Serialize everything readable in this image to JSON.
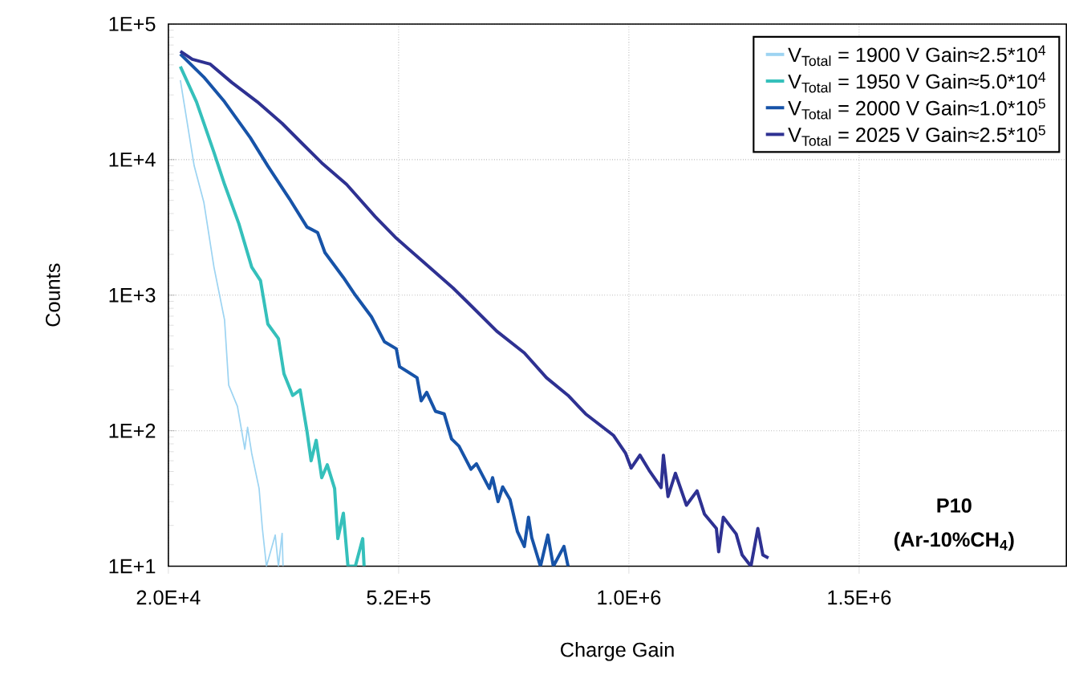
{
  "chart_data": {
    "type": "line",
    "xlabel": "Charge Gain",
    "ylabel": "Counts",
    "log": "y",
    "grid": true,
    "legend": "top right",
    "marker": "none",
    "line_style": "solid",
    "xlim": [
      20000,
      1970000
    ],
    "ylim": [
      10,
      100000
    ],
    "xticks": [
      {
        "value": 20000,
        "label": "2.0E+4"
      },
      {
        "value": 520000,
        "label": "5.2E+5"
      },
      {
        "value": 1020000,
        "label": "1.0E+6"
      },
      {
        "value": 1520000,
        "label": "1.5E+6"
      }
    ],
    "yticks": [
      {
        "value": 10,
        "label": "1E+1"
      },
      {
        "value": 100,
        "label": "1E+2"
      },
      {
        "value": 1000,
        "label": "1E+3"
      },
      {
        "value": 10000,
        "label": "1E+4"
      },
      {
        "value": 100000,
        "label": "1E+5"
      }
    ],
    "annotations": [
      "P10",
      "(Ar-10%CH$_{4}$)"
    ],
    "series": [
      {
        "name": "V$_{Total}$ = 1900 V   Gain≈2.5*10$^{4}$",
        "color": "#9dd4f2",
        "x": [
          46000,
          76000,
          97000,
          119000,
          142000,
          151000,
          170000,
          186000,
          192000,
          201000,
          217000,
          224000,
          233000,
          252000,
          259000,
          267000,
          269000
        ],
        "values": [
          38500,
          9000,
          4850,
          1610,
          656,
          217,
          151,
          73,
          106,
          68,
          37.5,
          19.2,
          10,
          17,
          10,
          17.5,
          10
        ]
      },
      {
        "name": "V$_{Total}$ = 1950 V   Gain≈5.0*10$^{4}$",
        "color": "#35c0bb",
        "x": [
          46000,
          81000,
          119000,
          142000,
          173000,
          201000,
          220000,
          236000,
          259000,
          271000,
          290000,
          306000,
          321000,
          330000,
          341000,
          353000,
          365000,
          381000,
          388000,
          400000,
          410000,
          426000,
          442000,
          445000
        ],
        "values": [
          48600,
          26700,
          11300,
          6560,
          3370,
          1610,
          1280,
          612,
          478,
          263,
          182,
          200,
          99,
          60,
          85,
          45,
          56,
          37.5,
          16,
          24.6,
          10,
          10,
          16,
          10
        ]
      },
      {
        "name": "V$_{Total}$ = 2000 V   Gain≈1.0*10$^{5}$",
        "color": "#1753a8",
        "x": [
          46000,
          97000,
          142000,
          198000,
          236000,
          283000,
          321000,
          344000,
          360000,
          400000,
          426000,
          461000,
          489000,
          515000,
          522000,
          560000,
          569000,
          581000,
          600000,
          619000,
          635000,
          651000,
          677000,
          689000,
          717000,
          724000,
          736000,
          746000,
          762000,
          778000,
          793000,
          802000,
          809000,
          828000,
          844000,
          856000,
          879000,
          888000
        ],
        "values": [
          60000,
          40600,
          26700,
          14500,
          8970,
          5130,
          3180,
          2900,
          2060,
          1350,
          1000,
          692,
          454,
          402,
          297,
          246,
          166,
          192,
          139,
          133,
          87,
          77,
          52,
          57,
          37.5,
          45,
          30,
          38.5,
          31,
          18,
          14,
          23,
          16.3,
          10,
          17,
          10,
          14,
          10
        ]
      },
      {
        "name": "V$_{Total}$ = 2025 V   Gain≈2.5*10$^{5}$",
        "color": "#2e3192",
        "x": [
          46000,
          72000,
          111000,
          158000,
          213000,
          267000,
          314000,
          353000,
          407000,
          469000,
          515000,
          576000,
          638000,
          670000,
          733000,
          793000,
          841000,
          888000,
          926000,
          987000,
          1013000,
          1025000,
          1044000,
          1064000,
          1090000,
          1095000,
          1105000,
          1121000,
          1145000,
          1168000,
          1184000,
          1210000,
          1215000,
          1225000,
          1253000,
          1266000,
          1285000,
          1300000,
          1311000,
          1323000
        ],
        "values": [
          63000,
          55000,
          50600,
          37000,
          26700,
          18500,
          12800,
          9460,
          6560,
          3800,
          2630,
          1730,
          1130,
          885,
          542,
          375,
          246,
          182,
          133,
          92,
          68,
          53,
          66,
          51,
          38,
          66,
          32.7,
          48.5,
          28.2,
          36,
          24.3,
          19,
          12.8,
          23,
          17.3,
          12.1,
          10,
          19,
          12.1,
          11.5
        ]
      }
    ]
  }
}
